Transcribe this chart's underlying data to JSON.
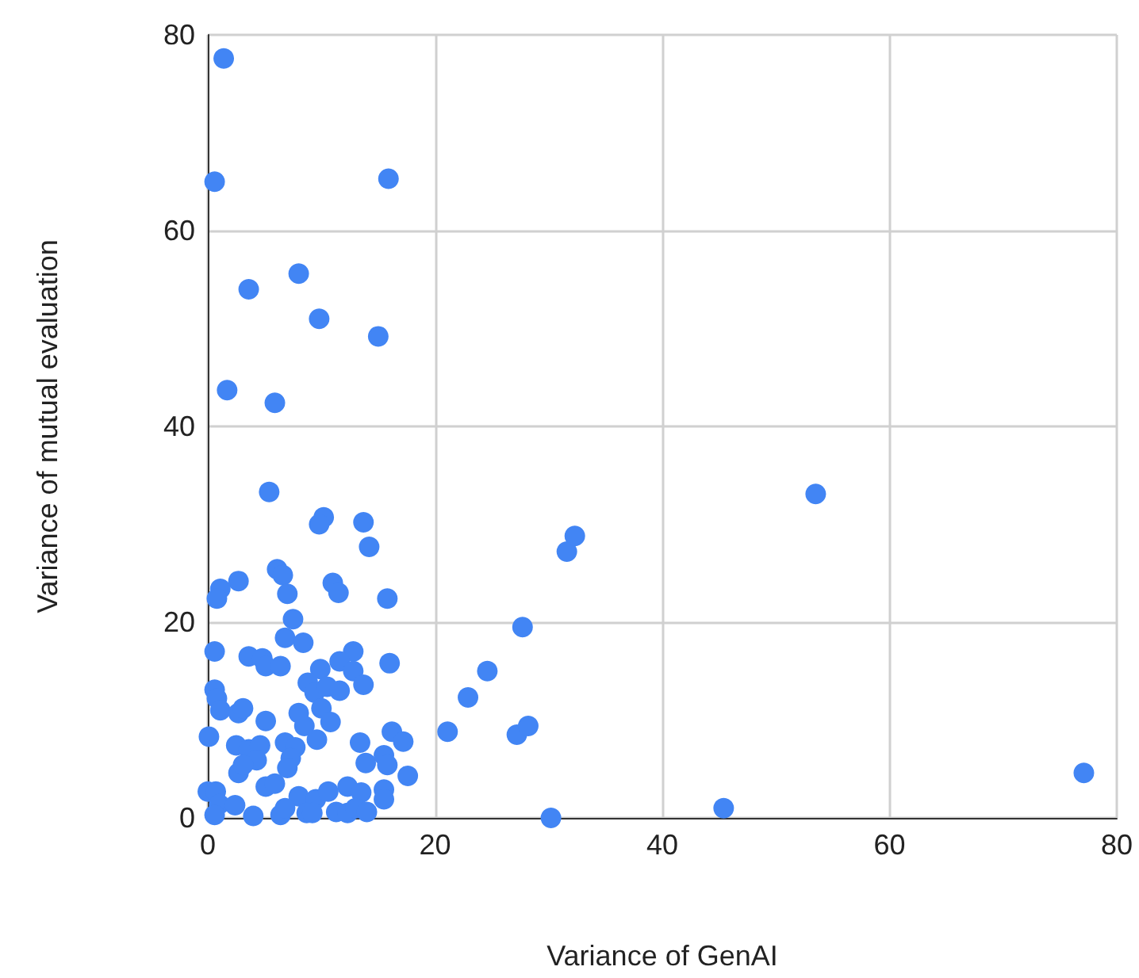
{
  "chart_data": {
    "type": "scatter",
    "xlabel": "Variance of GenAI",
    "ylabel": "Variance of mutual evaluation",
    "x": [
      1.4,
      0.6,
      15.9,
      3.6,
      8,
      9.8,
      15,
      1.7,
      5.9,
      5.4,
      10.2,
      9.8,
      13.7,
      14.2,
      6.1,
      6.6,
      2.7,
      7,
      1.1,
      0.8,
      15.8,
      11,
      11.5,
      7.5,
      6.8,
      8.4,
      0.6,
      3.6,
      4.8,
      5.1,
      6.4,
      12.8,
      9.9,
      11.6,
      12.8,
      16,
      0.6,
      0.8,
      1.1,
      2.7,
      3.1,
      5.1,
      8.8,
      9.4,
      10.5,
      11.6,
      13.7,
      10,
      8,
      10.8,
      8.5,
      0.1,
      9.6,
      13.4,
      16.2,
      17.2,
      2.5,
      3.6,
      4.6,
      4.3,
      2.7,
      3.1,
      6.8,
      7.7,
      7.3,
      7,
      13.9,
      15.5,
      15.8,
      17.6,
      5.1,
      5.9,
      0,
      0.7,
      1,
      2.4,
      8,
      9.5,
      10.6,
      12.3,
      13.5,
      15.5,
      15.5,
      0.6,
      4,
      6.4,
      8.7,
      9.2,
      11.3,
      12.3,
      13,
      14,
      6.8,
      21.1,
      22.9,
      24.6,
      27.7,
      27.2,
      28.2,
      31.6,
      32.3,
      30.2,
      45.4,
      53.5,
      77.1
    ],
    "values": [
      77.6,
      65,
      65.3,
      54,
      55.6,
      51,
      49.2,
      43.7,
      42.4,
      33.3,
      30.7,
      30,
      30.2,
      27.7,
      25.4,
      24.8,
      24.2,
      22.9,
      23.4,
      22.4,
      22.4,
      24,
      23,
      20.3,
      18.4,
      17.9,
      17,
      16.5,
      16.3,
      15.5,
      15.5,
      17,
      15.2,
      16,
      15,
      15.8,
      13.1,
      12.2,
      11,
      10.7,
      11.2,
      9.9,
      13.8,
      12.8,
      13.4,
      13,
      13.6,
      11.2,
      10.7,
      9.8,
      9.4,
      8.3,
      8,
      7.7,
      8.8,
      7.8,
      7.4,
      7,
      7.4,
      5.9,
      4.6,
      5.4,
      7.7,
      7.2,
      6.1,
      5.1,
      5.6,
      6.4,
      5.4,
      4.3,
      3.2,
      3.5,
      2.7,
      2.7,
      1.4,
      1.3,
      2.2,
      1.9,
      2.7,
      3.2,
      2.6,
      2.9,
      1.9,
      0.3,
      0.2,
      0.3,
      0.5,
      0.5,
      0.6,
      0.5,
      1,
      0.6,
      1,
      8.8,
      12.3,
      15,
      19.5,
      8.5,
      9.4,
      27.2,
      28.8,
      0,
      1,
      33.1,
      4.6
    ],
    "color": "#4285f4",
    "xlim": [
      0,
      80
    ],
    "xticks": [
      0,
      20,
      40,
      60,
      80
    ],
    "ylim": [
      0,
      80
    ],
    "yticks": [
      0,
      20,
      40,
      60,
      80
    ],
    "grid": true,
    "marker": "circle"
  }
}
